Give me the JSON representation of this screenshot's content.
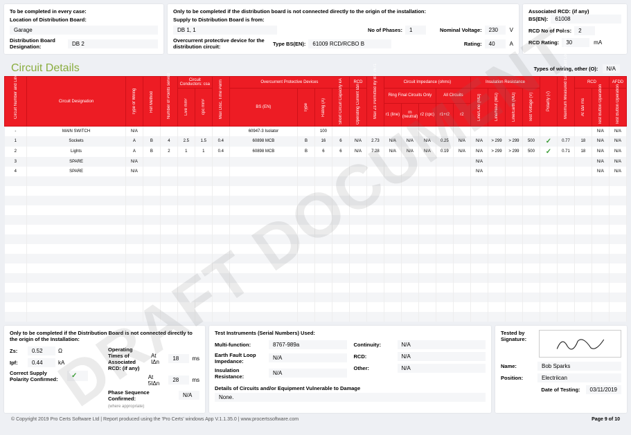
{
  "watermark": "DRAFT DOCUMENT",
  "top_left": {
    "title": "To be completed in every case:",
    "location_label": "Location of Distribution Board:",
    "location_value": "Garage",
    "desig_label": "Distribution Board Designation:",
    "desig_value": "DB 2"
  },
  "top_mid": {
    "title": "Only to be completed if the distribution board is not connected directly to the origin of the installation:",
    "supply_label": "Supply to Distribution Board is from:",
    "supply_value": "DB 1, 1",
    "phases_label": "No of Phases:",
    "phases_value": "1",
    "nom_v_label": "Nominal Voltage:",
    "nom_v_value": "230",
    "nom_v_unit": "V",
    "ocpd_label": "Overcurrent protective device for the distribution circuit:",
    "type_bsen_label": "Type BS(EN):",
    "type_bsen_value": "61009 RCD/RCBO B",
    "rating_label": "Rating:",
    "rating_value": "40",
    "rating_unit": "A"
  },
  "top_right": {
    "assoc_label": "Associated RCD: (if any)",
    "bsen_label": "BS(EN):",
    "bsen_value": "61008",
    "poles_label": "RCD No of Poles:",
    "poles_value": "2",
    "rating_label": "RCD Rating:",
    "rating_value": "30",
    "rating_unit": "mA"
  },
  "circuit_details_title": "Circuit Details",
  "types_wiring_label": "Types of wiring, other (O):",
  "types_wiring_value": "N/A",
  "table_groups": {
    "cond": "Circuit Conductors: csa",
    "ocp": "Overcurrent Protective Devices",
    "rcd": "RCD",
    "cimp": "Circuit Impedance (ohms)",
    "ring": "Ring Final Circuits Only",
    "allc": "All Circuits",
    "insr": "Insulation Resistance",
    "rcd2": "RCD",
    "afdd": "AFDD"
  },
  "headers": {
    "num": "Circuit Number and Line",
    "desig": "Circuit Designation",
    "tow": "Type of Wiring",
    "ref": "Ref Method",
    "nops": "Number of Points served",
    "live": "Live mm²",
    "cpc": "cpc mm²",
    "mdt": "Max Disc. Time Perm",
    "bsen": "BS (EN)",
    "type": "Type",
    "rating": "Rating (A)",
    "scc": "Short Circuit Capacity kA",
    "ocu": "Operating Current IΔn",
    "mzp": "Max Zs Permitted By BS 7671",
    "r1l": "r1 (line)",
    "rnn": "rn (neutral)",
    "r2c": "r2 (cpc)",
    "r1r2": "r1+r2",
    "r2": "r2",
    "ll": "Line/Line (MΩ)",
    "ln": "Line/Neut (MΩ)",
    "le": "Line/Earth (MΩ)",
    "tv": "Test Voltage (V)",
    "pol": "Polarity (√)",
    "mmefli": "Maximum Measured Earth Fault Loop Impedance Zs",
    "atidn": "At IΔn ms",
    "tbo": "Test Button Operation",
    "tbo2": "Test Button Operation"
  },
  "rows": [
    {
      "num": "-",
      "desig": "MAIN SWITCH",
      "tow": "N/A",
      "ref": "",
      "nops": "",
      "live": "",
      "cpc": "",
      "mdt": "",
      "bsen": "60947-3 Isolator",
      "type": "",
      "rating": "100",
      "scc": "",
      "ocu": "",
      "mzp": "",
      "r1l": "",
      "rnn": "",
      "r2c": "",
      "r1r2": "",
      "r2": "",
      "ll": "",
      "ln": "",
      "le": "",
      "tv": "",
      "pol": "",
      "mmefli": "",
      "atidn": "",
      "tbo": "N/A",
      "tbo2": "N/A"
    },
    {
      "num": "1",
      "desig": "Sockets",
      "tow": "A",
      "ref": "B",
      "nops": "4",
      "live": "2.5",
      "cpc": "1.5",
      "mdt": "0.4",
      "bsen": "60898 MCB",
      "type": "B",
      "rating": "16",
      "scc": "6",
      "ocu": "N/A",
      "mzp": "2.73",
      "r1l": "N/A",
      "rnn": "N/A",
      "r2c": "N/A",
      "r1r2": "0.25",
      "r2": "N/A",
      "ll": "N/A",
      "ln": "> 299",
      "le": "> 299",
      "tv": "500",
      "pol": "✓",
      "mmefli": "0.77",
      "atidn": "18",
      "tbo": "N/A",
      "tbo2": "N/A"
    },
    {
      "num": "2",
      "desig": "Lights",
      "tow": "A",
      "ref": "B",
      "nops": "2",
      "live": "1",
      "cpc": "1",
      "mdt": "0.4",
      "bsen": "60898 MCB",
      "type": "B",
      "rating": "6",
      "scc": "6",
      "ocu": "N/A",
      "mzp": "7.28",
      "r1l": "N/A",
      "rnn": "N/A",
      "r2c": "N/A",
      "r1r2": "0.19",
      "r2": "N/A",
      "ll": "N/A",
      "ln": "> 299",
      "le": "> 299",
      "tv": "500",
      "pol": "✓",
      "mmefli": "0.71",
      "atidn": "18",
      "tbo": "N/A",
      "tbo2": "N/A"
    },
    {
      "num": "3",
      "desig": "SPARE",
      "tow": "N/A",
      "ref": "",
      "nops": "",
      "live": "",
      "cpc": "",
      "mdt": "",
      "bsen": "",
      "type": "",
      "rating": "",
      "scc": "",
      "ocu": "",
      "mzp": "",
      "r1l": "",
      "rnn": "",
      "r2c": "",
      "r1r2": "",
      "r2": "",
      "ll": "N/A",
      "ln": "",
      "le": "",
      "tv": "",
      "pol": "",
      "mmefli": "",
      "atidn": "",
      "tbo": "N/A",
      "tbo2": "N/A"
    },
    {
      "num": "4",
      "desig": "SPARE",
      "tow": "N/A",
      "ref": "",
      "nops": "",
      "live": "",
      "cpc": "",
      "mdt": "",
      "bsen": "",
      "type": "",
      "rating": "",
      "scc": "",
      "ocu": "",
      "mzp": "",
      "r1l": "",
      "rnn": "",
      "r2c": "",
      "r1r2": "",
      "r2": "",
      "ll": "N/A",
      "ln": "",
      "le": "",
      "tv": "",
      "pol": "",
      "mmefli": "",
      "atidn": "",
      "tbo": "N/A",
      "tbo2": "N/A"
    }
  ],
  "bottom_left": {
    "title": "Only to be completed if the Distribution Board is not connected directly to the origin of the Installation:",
    "zs_label": "Zs:",
    "zs_value": "0.52",
    "zs_unit": "Ω",
    "ipf_label": "Ipf:",
    "ipf_value": "0.44",
    "ipf_unit": "kA",
    "polarity_label": "Correct Supply Polarity Confirmed:",
    "op_times_label": "Operating Times of Associated RCD: (if any)",
    "at_idn_label": "At IΔn",
    "at_idn_value": "18",
    "at_idn_unit": "ms",
    "at_5idn_label": "At 5IΔn",
    "at_5idn_value": "28",
    "at_5idn_unit": "ms",
    "phase_seq_label": "Phase Sequence Confirmed:",
    "phase_seq_sub": "(where appropriate)",
    "phase_seq_value": "N/A"
  },
  "bottom_mid": {
    "title": "Test Instruments (Serial Numbers) Used:",
    "mf_label": "Multi-function:",
    "mf_value": "8767-989a",
    "cont_label": "Continuity:",
    "cont_value": "N/A",
    "efli_label": "Earth Fault Loop Impedance:",
    "efli_value": "N/A",
    "rcd_label": "RCD:",
    "rcd_value": "N/A",
    "ir_label": "Insulation Resistance:",
    "ir_value": "N/A",
    "other_label": "Other:",
    "other_value": "N/A",
    "details_label": "Details of Circuits and/or Equipment Vulnerable to Damage",
    "details_value": "None."
  },
  "bottom_right": {
    "tested_by_label": "Tested by Signature:",
    "name_label": "Name:",
    "name_value": "Bob Sparks",
    "pos_label": "Position:",
    "pos_value": "Electriican",
    "date_label": "Date of Testing:",
    "date_value": "03/11/2019"
  },
  "footer": {
    "left": "© Copyright 2019 Pro Certs Software Ltd  |  Report produced using the 'Pro Certs' windows App V.1.1.35.0  |  www.procertssoftware.com",
    "right": "Page 9 of 10"
  },
  "colors": {
    "header_bg": "#ed1c24",
    "header_border": "#d01018",
    "accent": "#8aad3f"
  },
  "blank_rows": 15
}
